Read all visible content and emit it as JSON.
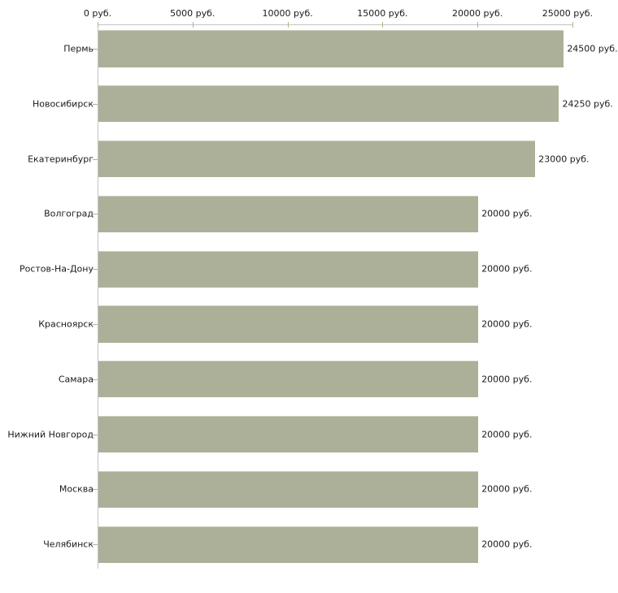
{
  "chart_data": {
    "type": "bar",
    "orientation": "horizontal",
    "title": "",
    "xlabel": "",
    "ylabel": "",
    "categories": [
      "Пермь",
      "Новосибирск",
      "Екатеринбург",
      "Волгоград",
      "Ростов-На-Дону",
      "Красноярск",
      "Самара",
      "Нижний Новгород",
      "Москва",
      "Челябинск"
    ],
    "values": [
      24500,
      24250,
      23000,
      20000,
      20000,
      20000,
      20000,
      20000,
      20000,
      20000
    ],
    "value_labels": [
      "24500 руб.",
      "24250 руб.",
      "23000 руб.",
      "20000 руб.",
      "20000 руб.",
      "20000 руб.",
      "20000 руб.",
      "20000 руб.",
      "20000 руб.",
      "20000 руб."
    ],
    "xlim": [
      0,
      25000
    ],
    "x_ticks": [
      0,
      5000,
      10000,
      15000,
      20000,
      25000
    ],
    "x_tick_labels": [
      "0 руб.",
      "5000 руб.",
      "10000 руб.",
      "15000 руб.",
      "20000 руб.",
      "25000 руб."
    ],
    "axis_position": "top",
    "grid": false,
    "legend": false,
    "colors": {
      "bar_fill": "#acb098",
      "bar_top_edge": "#ccceba",
      "axis_line": "#c3c3c3",
      "tick_mark": "#b3b489",
      "text": "#1a1a1a",
      "background": "#ffffff"
    }
  }
}
